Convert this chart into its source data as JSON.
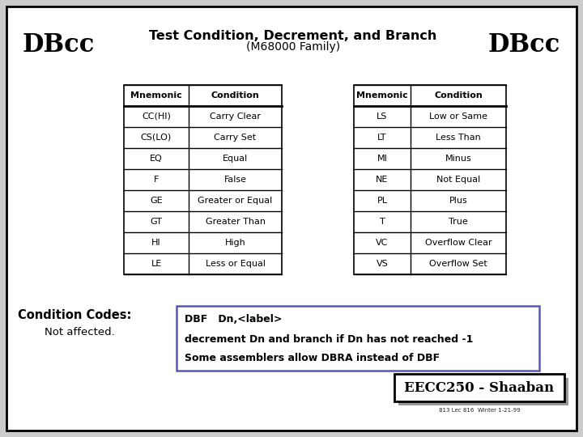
{
  "title_main": "Test Condition, Decrement, and Branch",
  "title_sub": "(M68000 Family)",
  "title_left": "DBcc",
  "title_right": "DBcc",
  "bg_color": "#cccccc",
  "slide_bg": "#ffffff",
  "table_left": {
    "headers": [
      "Mnemonic",
      "Condition"
    ],
    "rows": [
      [
        "CC(HI)",
        "Carry Clear"
      ],
      [
        "CS(LO)",
        "Carry Set"
      ],
      [
        "EQ",
        "Equal"
      ],
      [
        "F",
        "False"
      ],
      [
        "GE",
        "Greater or Equal"
      ],
      [
        "GT",
        "Greater Than"
      ],
      [
        "HI",
        "High"
      ],
      [
        "LE",
        "Less or Equal"
      ]
    ]
  },
  "table_right": {
    "headers": [
      "Mnemonic",
      "Condition"
    ],
    "rows": [
      [
        "LS",
        "Low or Same"
      ],
      [
        "LT",
        "Less Than"
      ],
      [
        "MI",
        "Minus"
      ],
      [
        "NE",
        "Not Equal"
      ],
      [
        "PL",
        "Plus"
      ],
      [
        "T",
        "True"
      ],
      [
        "VC",
        "Overflow Clear"
      ],
      [
        "VS",
        "Overflow Set"
      ]
    ]
  },
  "condition_label": "Condition Codes:",
  "condition_value": "Not affected.",
  "dbf_lines": [
    "DBF   Dn,<label>",
    "decrement Dn and branch if Dn has not reached -1",
    "Some assemblers allow DBRA instead of DBF"
  ],
  "footer_main": "EECC250 - Shaaban",
  "footer_small": "813 Lec 816  Winter 1-21-99"
}
